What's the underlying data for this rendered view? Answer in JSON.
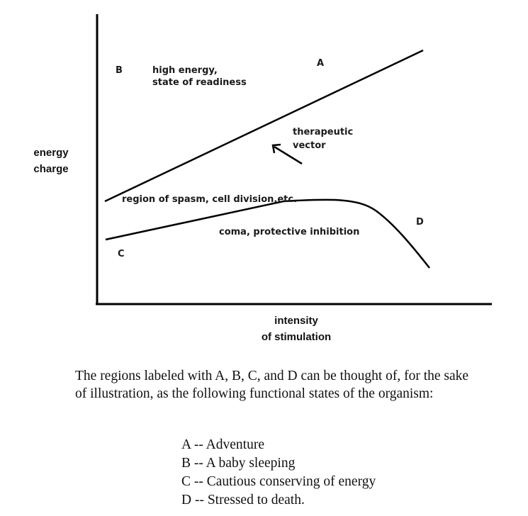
{
  "diagram": {
    "y_axis_label": [
      "energy",
      "charge"
    ],
    "x_axis_label": [
      "intensity",
      "of stimulation"
    ],
    "region_labels": {
      "a": "A",
      "b": "B",
      "c": "C",
      "d": "D"
    },
    "annotations": {
      "high_energy": [
        "high energy,",
        "state of readiness"
      ],
      "therapeutic_vector": [
        "therapeutic",
        "vector"
      ],
      "spasm": "region of spasm, cell division,etc.",
      "coma": "coma, protective inhibition"
    }
  },
  "caption": "The regions labeled with A, B, C, and D can be thought of, for the sake of illustration, as the following functional states of the organism:",
  "legend": [
    "A -- Adventure",
    "B -- A baby sleeping",
    "C -- Cautious conserving of energy",
    "D -- Stressed to death."
  ]
}
